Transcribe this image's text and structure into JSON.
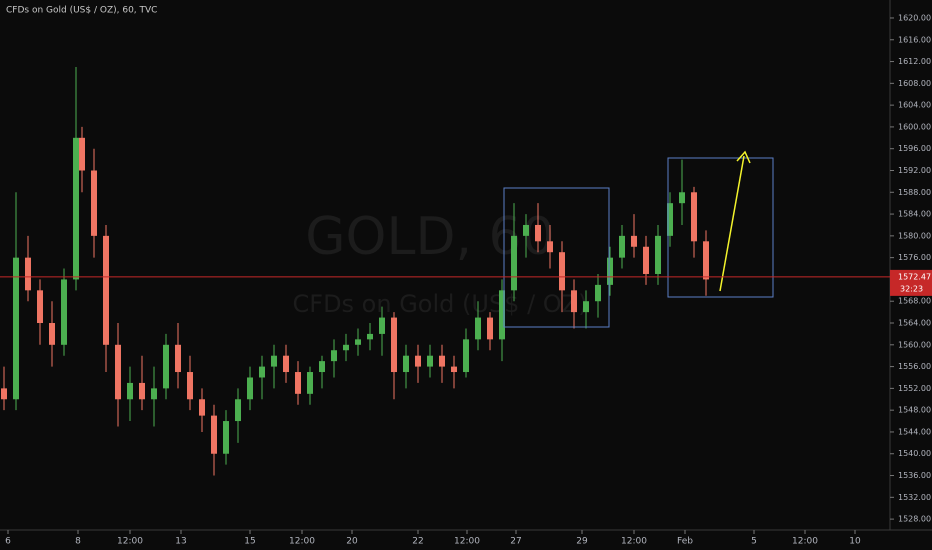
{
  "chart_data": {
    "type": "candlestick",
    "title": "CFDs on Gold (US$ / OZ), 60, TVC",
    "watermark_symbol": "GOLD, 60",
    "watermark_name": "CFDs on Gold (US$ / OZ)",
    "last_price": 1572.47,
    "countdown": "32:23",
    "up_color": "#4caf50",
    "down_color": "#ef7563",
    "price_line_color": "#c62828",
    "xlim": [
      0,
      890
    ],
    "xticks": [
      {
        "value": 8,
        "label": "6"
      },
      {
        "value": 78,
        "label": "8"
      },
      {
        "value": 130,
        "label": "12:00"
      },
      {
        "value": 181,
        "label": "13"
      },
      {
        "value": 250,
        "label": "15"
      },
      {
        "value": 302,
        "label": "12:00"
      },
      {
        "value": 352,
        "label": "20"
      },
      {
        "value": 418,
        "label": "22"
      },
      {
        "value": 467,
        "label": "12:00"
      },
      {
        "value": 516,
        "label": "27"
      },
      {
        "value": 582,
        "label": "29"
      },
      {
        "value": 634,
        "label": "12:00"
      },
      {
        "value": 685,
        "label": "Feb"
      },
      {
        "value": 754,
        "label": "5"
      },
      {
        "value": 805,
        "label": "12:00"
      },
      {
        "value": 855,
        "label": "10"
      }
    ],
    "ylim": [
      1526,
      1623.3
    ],
    "yticks": [
      {
        "value": 1528,
        "label": "1528.00"
      },
      {
        "value": 1532,
        "label": "1532.00"
      },
      {
        "value": 1536,
        "label": "1536.00"
      },
      {
        "value": 1540,
        "label": "1540.00"
      },
      {
        "value": 1544,
        "label": "1544.00"
      },
      {
        "value": 1548,
        "label": "1548.00"
      },
      {
        "value": 1552,
        "label": "1552.00"
      },
      {
        "value": 1556,
        "label": "1556.00"
      },
      {
        "value": 1560,
        "label": "1560.00"
      },
      {
        "value": 1564,
        "label": "1564.00"
      },
      {
        "value": 1568,
        "label": "1568.00"
      },
      {
        "value": 1572,
        "label": "1572.00"
      },
      {
        "value": 1576,
        "label": "1576.00"
      },
      {
        "value": 1580,
        "label": "1580.00"
      },
      {
        "value": 1584,
        "label": "1584.00"
      },
      {
        "value": 1588,
        "label": "1588.00"
      },
      {
        "value": 1592,
        "label": "1592.00"
      },
      {
        "value": 1596,
        "label": "1596.00"
      },
      {
        "value": 1600,
        "label": "1600.00"
      },
      {
        "value": 1604,
        "label": "1604.00"
      },
      {
        "value": 1608,
        "label": "1608.00"
      },
      {
        "value": 1612,
        "label": "1612.00"
      },
      {
        "value": 1616,
        "label": "1616.00"
      },
      {
        "value": 1620,
        "label": "1620.00"
      }
    ],
    "x": [
      4,
      16,
      28,
      40,
      52,
      64,
      76,
      82,
      94,
      106,
      118,
      130,
      142,
      154,
      166,
      178,
      190,
      202,
      214,
      226,
      238,
      250,
      262,
      274,
      286,
      298,
      310,
      322,
      334,
      346,
      358,
      370,
      382,
      394,
      406,
      418,
      430,
      442,
      454,
      466,
      478,
      490,
      502,
      514,
      526,
      538,
      550,
      562,
      574,
      586,
      598,
      610,
      622,
      634,
      646,
      658,
      670,
      682,
      694,
      706
    ],
    "open": [
      1552,
      1550,
      1576,
      1570,
      1564,
      1560,
      1572,
      1598,
      1592,
      1580,
      1560,
      1550,
      1553,
      1550,
      1552,
      1560,
      1555,
      1550,
      1547,
      1540,
      1546,
      1550,
      1554,
      1556,
      1558,
      1555,
      1551,
      1555,
      1557,
      1559,
      1560,
      1561,
      1562,
      1565,
      1555,
      1558,
      1556,
      1558,
      1556,
      1555,
      1561,
      1565,
      1561,
      1570,
      1580,
      1582,
      1579,
      1577,
      1570,
      1566,
      1568,
      1571,
      1576,
      1580,
      1578,
      1573,
      1580,
      1586,
      1588,
      1579
    ],
    "high": [
      1556,
      1588,
      1580,
      1572,
      1568,
      1574,
      1611,
      1600,
      1596,
      1582,
      1564,
      1556,
      1558,
      1556,
      1562,
      1564,
      1558,
      1552,
      1549,
      1548,
      1552,
      1556,
      1558,
      1560,
      1560,
      1557,
      1556,
      1558,
      1561,
      1562,
      1563,
      1564,
      1567,
      1566,
      1560,
      1560,
      1560,
      1560,
      1558,
      1563,
      1568,
      1566,
      1572,
      1586,
      1584,
      1586,
      1582,
      1579,
      1572,
      1570,
      1573,
      1578,
      1582,
      1584,
      1580,
      1582,
      1588,
      1594,
      1589,
      1581
    ],
    "low": [
      1548,
      1548,
      1568,
      1560,
      1556,
      1558,
      1570,
      1588,
      1576,
      1555,
      1545,
      1546,
      1548,
      1545,
      1550,
      1552,
      1548,
      1544,
      1536,
      1538,
      1542,
      1548,
      1550,
      1552,
      1553,
      1549,
      1549,
      1552,
      1554,
      1557,
      1558,
      1559,
      1558,
      1550,
      1552,
      1553,
      1554,
      1553,
      1552,
      1554,
      1559,
      1559,
      1557,
      1568,
      1576,
      1577,
      1574,
      1566,
      1563,
      1563,
      1565,
      1569,
      1574,
      1576,
      1571,
      1571,
      1578,
      1582,
      1576,
      1569
    ],
    "close": [
      1550,
      1576,
      1570,
      1564,
      1560,
      1572,
      1598,
      1592,
      1580,
      1560,
      1550,
      1553,
      1550,
      1552,
      1560,
      1555,
      1550,
      1547,
      1540,
      1546,
      1550,
      1554,
      1556,
      1558,
      1555,
      1551,
      1555,
      1557,
      1559,
      1560,
      1561,
      1562,
      1565,
      1555,
      1558,
      1556,
      1558,
      1556,
      1555,
      1561,
      1565,
      1561,
      1570,
      1580,
      1582,
      1579,
      1577,
      1570,
      1566,
      1568,
      1571,
      1576,
      1580,
      1578,
      1573,
      1580,
      1586,
      1588,
      1579,
      1572
    ]
  }
}
